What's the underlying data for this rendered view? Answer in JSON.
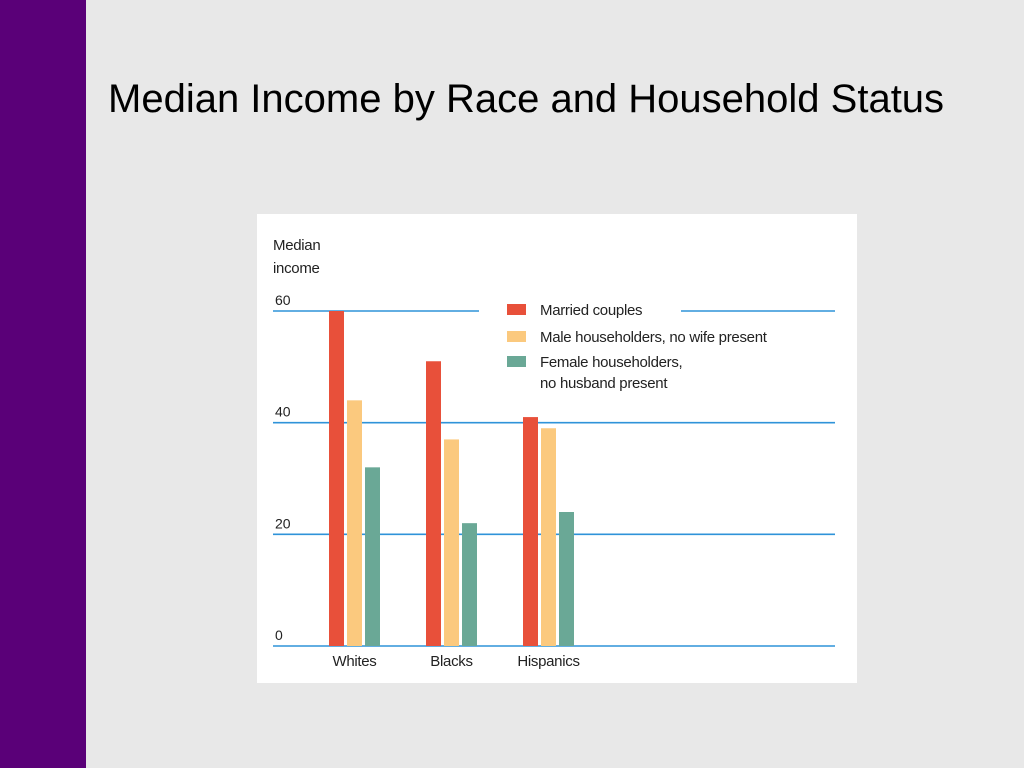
{
  "slide": {
    "title": "Median Income by Race and Household Status"
  },
  "colors": {
    "sidebar": "#5a0078",
    "background": "#e8e8e8",
    "gridline": "#2f93d9",
    "married": "#e8503a",
    "male": "#fbc97e",
    "female": "#6aa896"
  },
  "chart_data": {
    "type": "bar",
    "title": "",
    "ylabel": "Median\nincome",
    "xlabel": "",
    "categories": [
      "Whites",
      "Blacks",
      "Hispanics"
    ],
    "ylim": [
      0,
      60
    ],
    "yticks": [
      0,
      20,
      40,
      60
    ],
    "grid": true,
    "legend_position": "top-right",
    "series": [
      {
        "name": "Married couples",
        "color": "#e8503a",
        "values": [
          60,
          51,
          41
        ]
      },
      {
        "name": "Male householders, no wife present",
        "color": "#fbc97e",
        "values": [
          44,
          37,
          39
        ]
      },
      {
        "name": "Female householders,\nno husband present",
        "color": "#6aa896",
        "values": [
          32,
          22,
          24
        ]
      }
    ]
  }
}
